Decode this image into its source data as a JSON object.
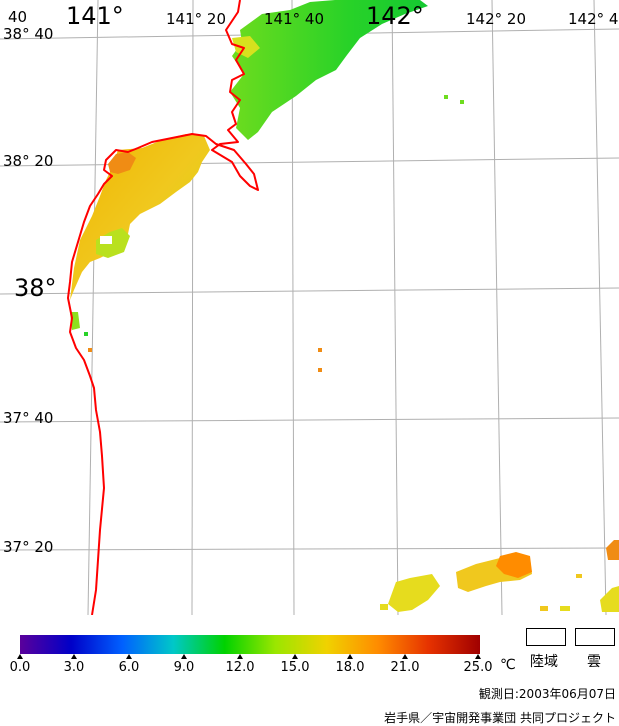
{
  "map": {
    "lat_labels": [
      "38° 40",
      "38° 20",
      "38°",
      "37° 40",
      "37° 20"
    ],
    "lon_labels": [
      "40",
      "141°",
      "141° 20",
      "141° 40",
      "142°",
      "142° 20",
      "142° 4"
    ]
  },
  "colors": {
    "coastline": "#ff0000",
    "grid": "#b0b0b0",
    "colormap": [
      "#5a009b",
      "#0000c8",
      "#0060ff",
      "#00c8c8",
      "#00d200",
      "#9be600",
      "#f0d200",
      "#ff8c00",
      "#e63200",
      "#a00000"
    ]
  },
  "legend": {
    "ticks": [
      "0.0",
      "3.0",
      "6.0",
      "9.0",
      "12.0",
      "15.0",
      "18.0",
      "21.0",
      "25.0"
    ],
    "unit": "℃",
    "land_label": "陸域",
    "cloud_label": "雲"
  },
  "footer": {
    "observation_date": "観測日:2003年06月07日",
    "credit": "岩手県／宇宙開発事業団 共同プロジェクト"
  }
}
